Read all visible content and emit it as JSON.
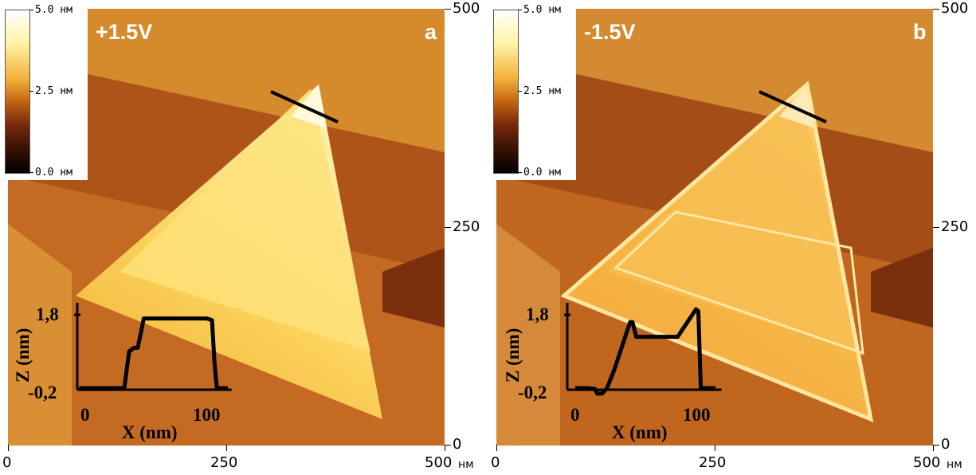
{
  "panels": [
    {
      "id": "a",
      "bias": "+1.5V",
      "letter": "a",
      "scale": {
        "top": "5.0 нм",
        "mid": "2.5 нм",
        "bottom": "0.0 нм"
      },
      "x_axis": {
        "ticks": [
          "0",
          "250",
          "500"
        ],
        "unit": "нм"
      },
      "y_axis": {
        "ticks": [
          "500",
          "250",
          "0"
        ]
      },
      "inset": {
        "xlabel": "X (nm)",
        "ylabel": "Z (nm)",
        "xticks": [
          "0",
          "100"
        ],
        "yticks": [
          "1,8",
          "-0,2"
        ],
        "profile": [
          [
            -5,
            -0.2
          ],
          [
            32,
            -0.2
          ],
          [
            34,
            0.3
          ],
          [
            36,
            0.8
          ],
          [
            40,
            0.9
          ],
          [
            43,
            0.9
          ],
          [
            45,
            1.2
          ],
          [
            48,
            1.7
          ],
          [
            60,
            1.7
          ],
          [
            100,
            1.7
          ],
          [
            104,
            1.65
          ],
          [
            106,
            0.5
          ],
          [
            108,
            -0.2
          ],
          [
            117,
            -0.2
          ]
        ]
      }
    },
    {
      "id": "b",
      "bias": "-1.5V",
      "letter": "b",
      "scale": {
        "top": "5.0 нм",
        "mid": "2.5 нм",
        "bottom": "0.0 нм"
      },
      "x_axis": {
        "ticks": [
          "0",
          "250",
          "500"
        ],
        "unit": "нм"
      },
      "y_axis": {
        "ticks": [
          "500",
          "250",
          "0"
        ]
      },
      "inset": {
        "xlabel": "X (nm)",
        "ylabel": "Z (nm)",
        "xticks": [
          "0",
          "100"
        ],
        "yticks": [
          "1,8",
          "-0,2"
        ],
        "profile": [
          [
            0,
            -0.2
          ],
          [
            10,
            -0.2
          ],
          [
            16,
            -0.22
          ],
          [
            18,
            -0.35
          ],
          [
            22,
            -0.35
          ],
          [
            26,
            -0.2
          ],
          [
            32,
            0.3
          ],
          [
            40,
            1.1
          ],
          [
            45,
            1.6
          ],
          [
            47,
            1.6
          ],
          [
            50,
            1.2
          ],
          [
            60,
            1.2
          ],
          [
            84,
            1.2
          ],
          [
            92,
            1.6
          ],
          [
            99,
            1.95
          ],
          [
            101,
            1.9
          ],
          [
            103,
            -0.2
          ],
          [
            115,
            -0.2
          ]
        ]
      }
    }
  ]
}
